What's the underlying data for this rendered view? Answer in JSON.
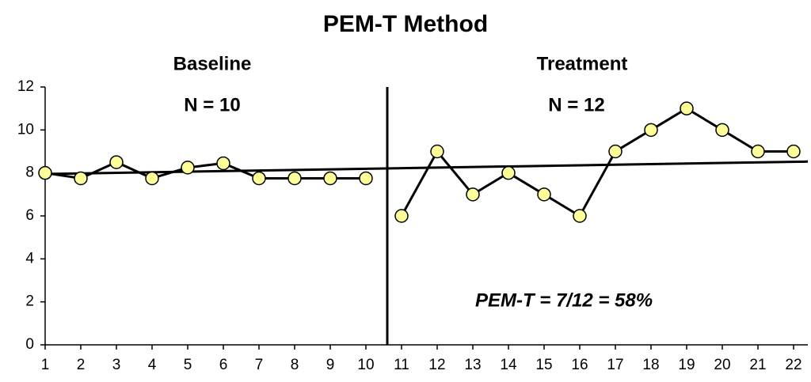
{
  "chart_data": {
    "type": "line",
    "title": "PEM-T Method",
    "phases": [
      "Baseline",
      "Treatment"
    ],
    "phase_counts": [
      "N = 10",
      "N = 12"
    ],
    "annotation": "PEM-T = 7/12 = 58%",
    "phase_change": 10.6,
    "series": [
      {
        "x": [
          1,
          2,
          3,
          4,
          5,
          6,
          7,
          8,
          9,
          10
        ],
        "values": [
          8,
          7.75,
          8.5,
          7.75,
          8.25,
          8.45,
          7.75,
          7.75,
          7.75,
          7.75
        ],
        "color": "#000000",
        "marker_color": "#ffff99"
      },
      {
        "x": [
          11,
          12,
          13,
          14,
          15,
          16,
          17,
          18,
          19,
          20,
          21,
          22
        ],
        "values": [
          6,
          9,
          7,
          8,
          7,
          6,
          9,
          10,
          11,
          10,
          9,
          9
        ],
        "color": "#000000",
        "marker_color": "#ffff99"
      }
    ],
    "trend": {
      "x": [
        1,
        22.4
      ],
      "values": [
        7.95,
        8.53
      ],
      "color": "#000000"
    },
    "xlim": [
      1,
      22.4
    ],
    "xticks": [
      1,
      2,
      3,
      4,
      5,
      6,
      7,
      8,
      9,
      10,
      11,
      12,
      13,
      14,
      15,
      16,
      17,
      18,
      19,
      20,
      21,
      22
    ],
    "ylim": [
      0,
      12
    ],
    "yticks": [
      0,
      2,
      4,
      6,
      8,
      10,
      12
    ],
    "grid": false
  }
}
